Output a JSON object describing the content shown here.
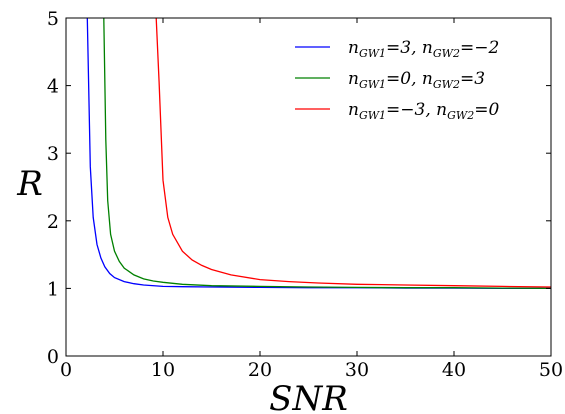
{
  "chart_data": {
    "type": "line",
    "title": "",
    "xlabel": "SNR",
    "ylabel": "R",
    "xlim": [
      0,
      50
    ],
    "ylim": [
      0,
      5
    ],
    "xticks": [
      "0",
      "10",
      "20",
      "30",
      "40",
      "50"
    ],
    "yticks": [
      "0",
      "1",
      "2",
      "3",
      "4",
      "5"
    ],
    "grid": false,
    "legend_position": "top-right",
    "series": [
      {
        "name": "nGW1=3, nGW2=−2",
        "color": "#0000ff",
        "x": [
          2.2,
          2.5,
          2.8,
          3.2,
          3.6,
          4.0,
          4.5,
          5.0,
          6.0,
          7.0,
          8.0,
          10.0,
          12.0,
          15.0,
          20.0,
          25.0,
          30.0,
          35.0,
          40.0,
          45.0,
          50.0
        ],
        "y": [
          5.0,
          2.8,
          2.05,
          1.65,
          1.45,
          1.32,
          1.22,
          1.16,
          1.1,
          1.07,
          1.05,
          1.03,
          1.025,
          1.02,
          1.015,
          1.01,
          1.01,
          1.005,
          1.005,
          1.0,
          1.0
        ]
      },
      {
        "name": "nGW1=0, nGW2=3",
        "color": "#008000",
        "x": [
          3.9,
          4.1,
          4.3,
          4.6,
          5.0,
          5.5,
          6.0,
          7.0,
          8.0,
          9.0,
          10.0,
          12.0,
          15.0,
          20.0,
          25.0,
          30.0,
          35.0,
          40.0,
          45.0,
          50.0
        ],
        "y": [
          5.0,
          3.2,
          2.3,
          1.8,
          1.55,
          1.4,
          1.3,
          1.2,
          1.14,
          1.11,
          1.09,
          1.06,
          1.04,
          1.03,
          1.02,
          1.015,
          1.01,
          1.01,
          1.005,
          1.0
        ]
      },
      {
        "name": "nGW1=−3, nGW2=0",
        "color": "#ff0000",
        "x": [
          9.3,
          9.6,
          10.0,
          10.5,
          11.0,
          12.0,
          13.0,
          14.0,
          15.0,
          17.0,
          20.0,
          23.0,
          26.0,
          30.0,
          35.0,
          40.0,
          45.0,
          50.0
        ],
        "y": [
          5.0,
          4.05,
          2.6,
          2.05,
          1.8,
          1.55,
          1.42,
          1.34,
          1.28,
          1.2,
          1.13,
          1.1,
          1.08,
          1.06,
          1.05,
          1.04,
          1.03,
          1.02
        ]
      }
    ],
    "legend": [
      {
        "a_main": "n",
        "a_sub": "GW1",
        "a_val": "=3, ",
        "b_main": "n",
        "b_sub": "GW2",
        "b_val": "=−2"
      },
      {
        "a_main": "n",
        "a_sub": "GW1",
        "a_val": "=0, ",
        "b_main": "n",
        "b_sub": "GW2",
        "b_val": "=3"
      },
      {
        "a_main": "n",
        "a_sub": "GW1",
        "a_val": "=−3, ",
        "b_main": "n",
        "b_sub": "GW2",
        "b_val": "=0"
      }
    ]
  }
}
